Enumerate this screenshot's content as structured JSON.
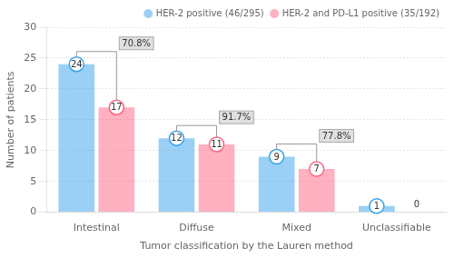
{
  "chart_data": {
    "type": "bar",
    "categories": [
      "Intestinal",
      "Diffuse",
      "Mixed",
      "Unclassifiable"
    ],
    "series": [
      {
        "name": "HER-2 positive (46/295)",
        "values": [
          24,
          12,
          9,
          1
        ]
      },
      {
        "name": "HER-2 and PD-L1 positive (35/192)",
        "values": [
          17,
          11,
          7,
          0
        ]
      }
    ],
    "annotations": [
      "70.8%",
      "91.7%",
      "77.8%",
      null
    ],
    "xlabel": "Tumor classification by the Lauren method",
    "ylabel": "Number of patients",
    "ylim": [
      0,
      30
    ],
    "yticks": [
      0,
      5,
      10,
      15,
      20,
      25,
      30
    ],
    "grid": true,
    "legend": "upper right",
    "data_labels": true
  }
}
